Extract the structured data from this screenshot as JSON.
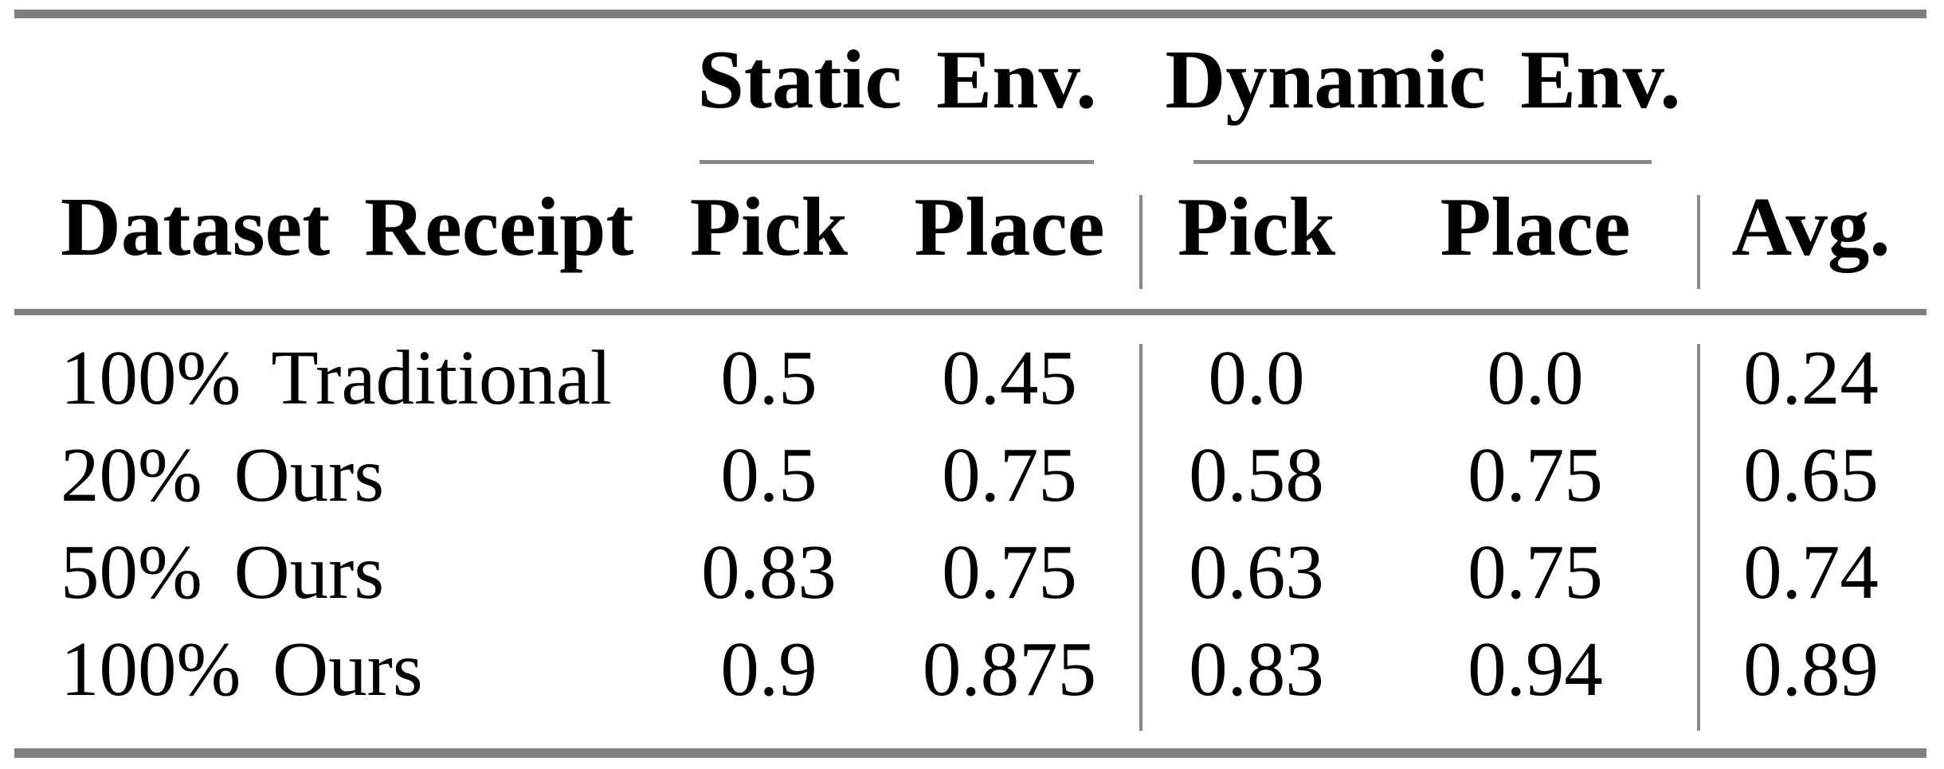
{
  "table": {
    "column_groups": [
      {
        "label": "Static Env."
      },
      {
        "label": "Dynamic Env."
      }
    ],
    "row_header": "Dataset Receipt",
    "sub_headers": [
      "Pick",
      "Place",
      "Pick",
      "Place"
    ],
    "avg_header": "Avg.",
    "rows": [
      {
        "label": "100% Traditional",
        "values": [
          "0.5",
          "0.45",
          "0.0",
          "0.0",
          "0.24"
        ]
      },
      {
        "label": "20% Ours",
        "values": [
          "0.5",
          "0.75",
          "0.58",
          "0.75",
          "0.65"
        ]
      },
      {
        "label": "50% Ours",
        "values": [
          "0.83",
          "0.75",
          "0.63",
          "0.75",
          "0.74"
        ]
      },
      {
        "label": "100% Ours",
        "values": [
          "0.9",
          "0.875",
          "0.83",
          "0.94",
          "0.89"
        ]
      }
    ]
  },
  "theme": {
    "rule": "#7f7f7f",
    "thin-rule": "#8a8a8a",
    "ink": "#000000",
    "bg": "#ffffff"
  }
}
